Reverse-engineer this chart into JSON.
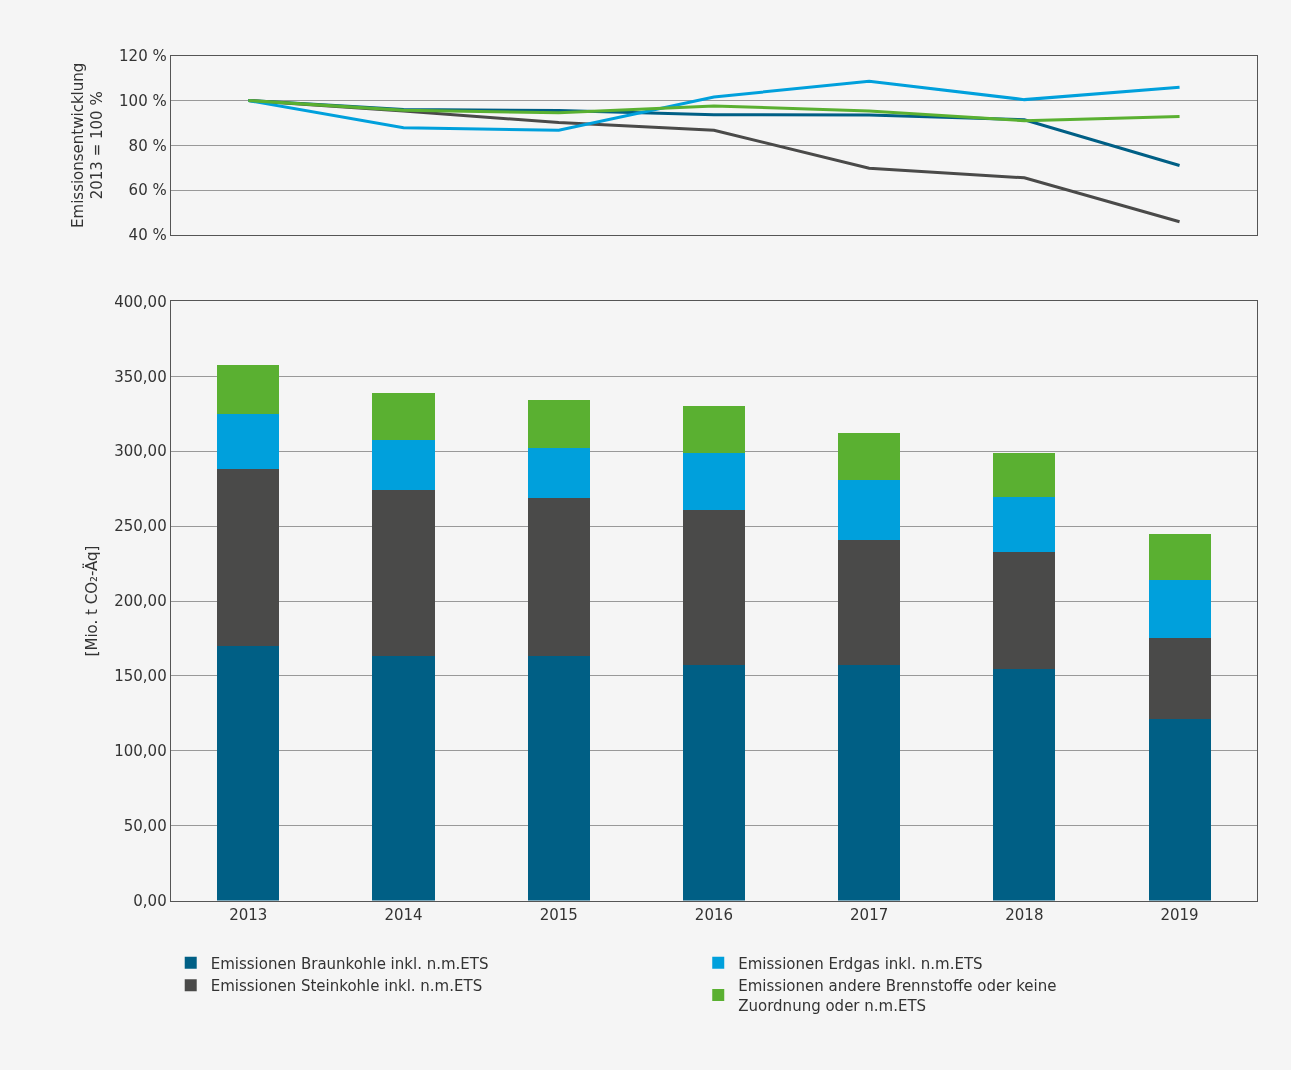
{
  "chart_data": [
    {
      "type": "line",
      "ylabel": "Emissionsentwicklung\n2013 = 100 %",
      "categories": [
        "2013",
        "2014",
        "2015",
        "2016",
        "2017",
        "2018",
        "2019"
      ],
      "series": [
        {
          "color": "#005f85",
          "values": [
            100,
            96,
            95.5,
            93.7,
            93.5,
            91.4,
            71
          ]
        },
        {
          "color": "#4a4a49",
          "values": [
            100,
            95.3,
            90.2,
            86.7,
            69.8,
            65.5,
            45.9
          ]
        },
        {
          "color": "#00a0dc",
          "values": [
            100,
            87.8,
            86.7,
            101.6,
            108.6,
            100.4,
            105.9
          ]
        },
        {
          "color": "#5ab031",
          "values": [
            100,
            95.7,
            94.5,
            97.6,
            95.3,
            91,
            92.9
          ]
        }
      ],
      "ylim": [
        40,
        120
      ],
      "yticks": [
        {
          "value": 40,
          "label": "40 %"
        },
        {
          "value": 60,
          "label": "60 %"
        },
        {
          "value": 80,
          "label": "80 %"
        },
        {
          "value": 100,
          "label": "100 %"
        },
        {
          "value": 120,
          "label": "120 %"
        }
      ],
      "tick_labels": "y",
      "grid": "y",
      "legend": false,
      "marker": "none",
      "line_style": "solid"
    },
    {
      "type": "bar",
      "stacked": true,
      "ylabel": "[Mio. t CO₂-Äq]",
      "categories": [
        "2013",
        "2014",
        "2015",
        "2016",
        "2017",
        "2018",
        "2019"
      ],
      "series": [
        {
          "name": "Emissionen Braunkohle inkl. n.m.ETS",
          "color": "#005f85",
          "values": [
            170,
            163,
            163,
            157.5,
            157.5,
            154.5,
            121
          ]
        },
        {
          "name": "Emissionen Steinkohle inkl. n.m.ETS",
          "color": "#4a4a49",
          "values": [
            118,
            111,
            106,
            103,
            83.5,
            78,
            54
          ]
        },
        {
          "name": "Emissionen Erdgas inkl. n.m.ETS",
          "color": "#00a0dc",
          "values": [
            37,
            33.5,
            33.5,
            38.5,
            40,
            37,
            39
          ]
        },
        {
          "name": "Emissionen andere Brennstoffe oder keine Zuordnung oder n.m.ETS",
          "color": "#5ab031",
          "values": [
            32.5,
            31.5,
            31.5,
            31,
            31.5,
            29.5,
            30.5
          ]
        }
      ],
      "ylim": [
        0,
        400
      ],
      "yticks": [
        {
          "value": 0,
          "label": "0,00"
        },
        {
          "value": 50,
          "label": "50,00"
        },
        {
          "value": 100,
          "label": "100,00"
        },
        {
          "value": 150,
          "label": "150,00"
        },
        {
          "value": 200,
          "label": "200,00"
        },
        {
          "value": 250,
          "label": "250,00"
        },
        {
          "value": 300,
          "label": "300,00"
        },
        {
          "value": 350,
          "label": "350,00"
        },
        {
          "value": 400,
          "label": "400,00"
        }
      ],
      "grid": "y",
      "legend": "bottom"
    }
  ]
}
